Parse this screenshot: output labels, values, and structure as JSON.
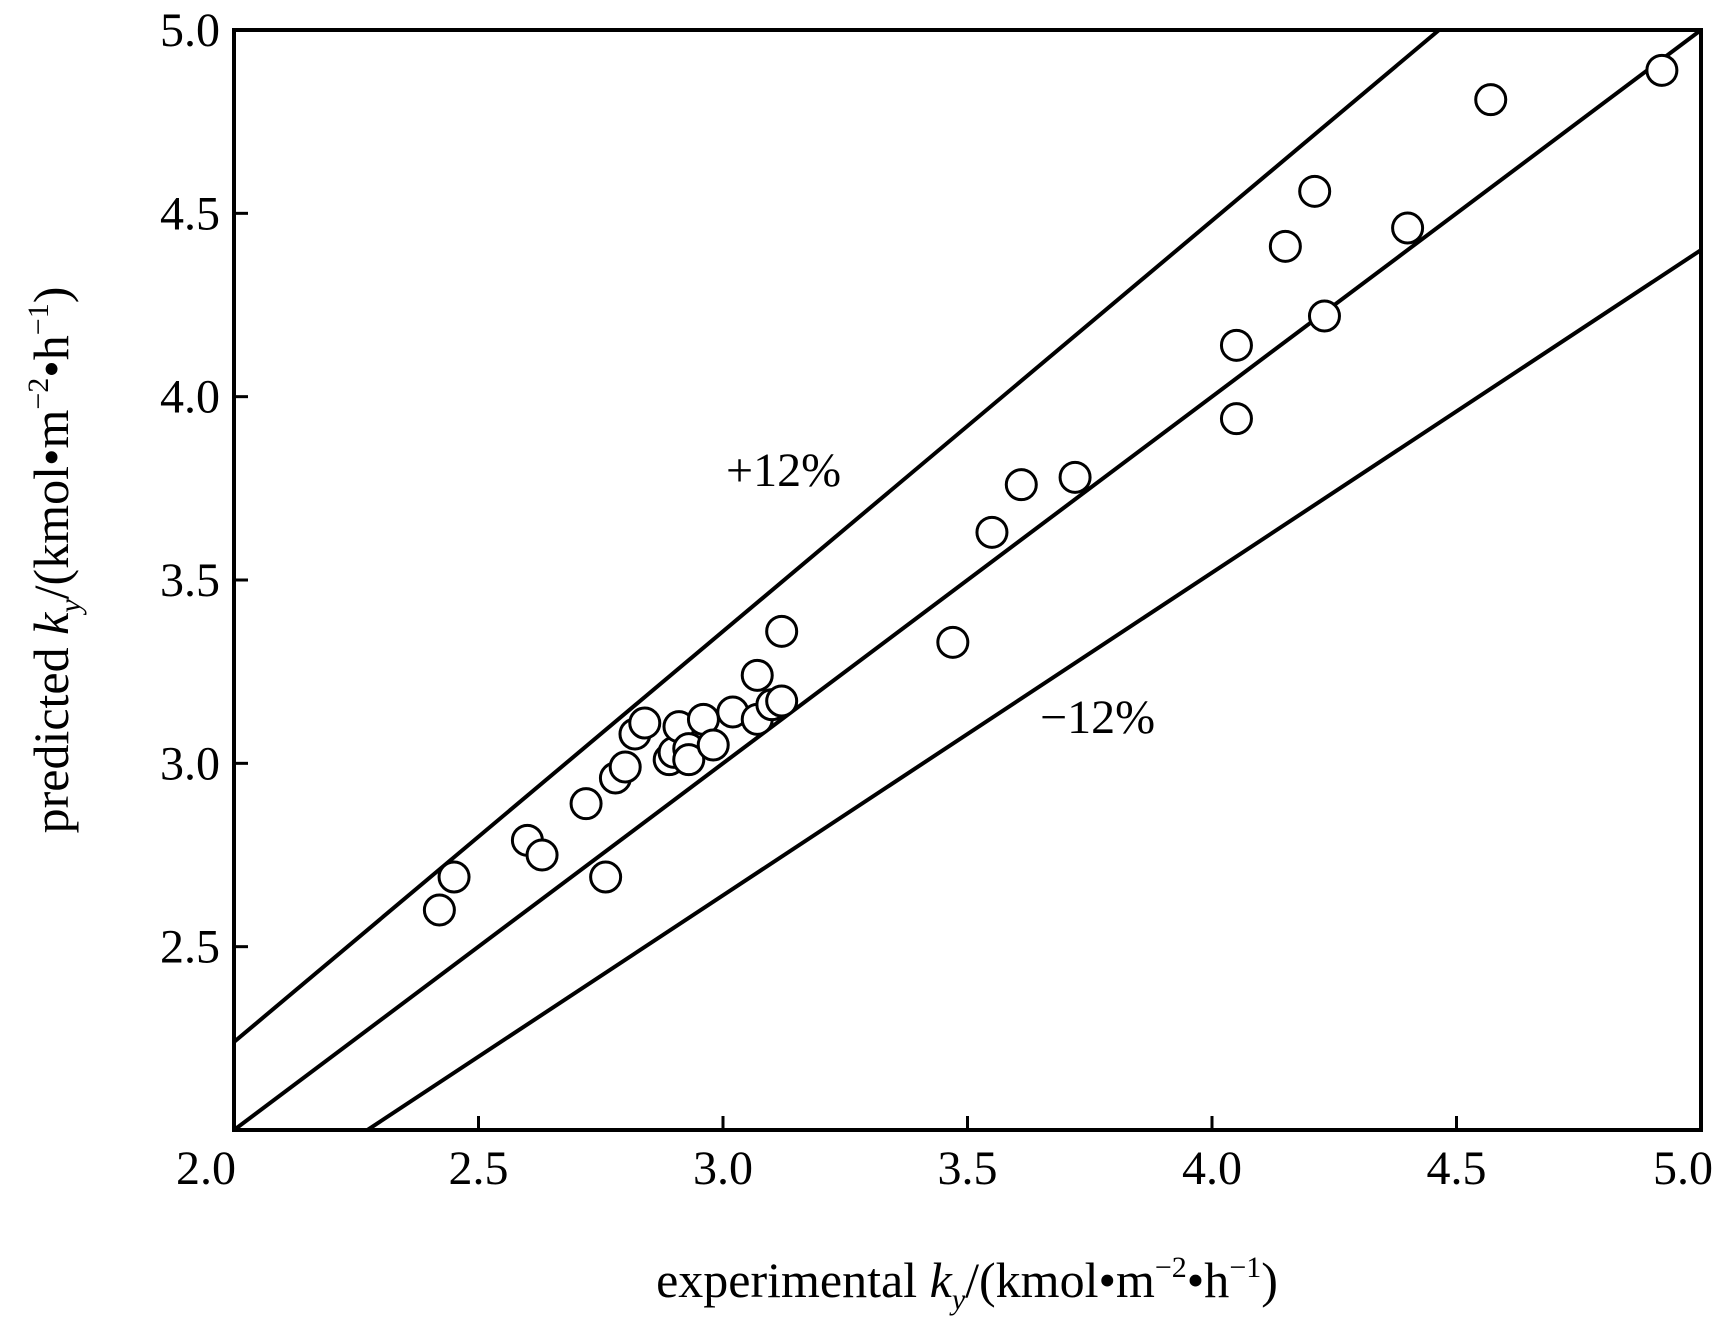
{
  "chart_data": {
    "type": "scatter",
    "xlabel": {
      "prefix": "experimental ",
      "var": "k",
      "sub": "y",
      "unit_open": "/(kmol•m",
      "exp1": "−2",
      "mid": "•h",
      "exp2": "−1",
      "unit_close": ")"
    },
    "ylabel": {
      "prefix": "predicted ",
      "var": "k",
      "sub": "y",
      "unit_open": "/(kmol•m",
      "exp1": "−2",
      "mid": "•h",
      "exp2": "−1",
      "unit_close": ")"
    },
    "xlim": [
      2.0,
      5.0
    ],
    "ylim": [
      2.0,
      5.0
    ],
    "x_ticks": [
      2.0,
      2.5,
      3.0,
      3.5,
      4.0,
      4.5,
      5.0
    ],
    "x_tick_labels": [
      "2.0",
      "2.5",
      "3.0",
      "3.5",
      "4.0",
      "4.5",
      "5.0"
    ],
    "y_ticks": [
      2.5,
      3.0,
      3.5,
      4.0,
      4.5,
      5.0
    ],
    "y_tick_labels": [
      "2.5",
      "3.0",
      "3.5",
      "4.0",
      "4.5",
      "5.0"
    ],
    "grid": false,
    "reference_lines": [
      {
        "name": "+12%",
        "slope": 1.12,
        "label": "+12%"
      },
      {
        "name": "parity",
        "slope": 1.0,
        "label": ""
      },
      {
        "name": "-12%",
        "slope": 0.88,
        "label": "−12%"
      }
    ],
    "points": [
      {
        "x": 2.42,
        "y": 2.6
      },
      {
        "x": 2.45,
        "y": 2.69
      },
      {
        "x": 2.6,
        "y": 2.79
      },
      {
        "x": 2.63,
        "y": 2.75
      },
      {
        "x": 2.72,
        "y": 2.89
      },
      {
        "x": 2.76,
        "y": 2.69
      },
      {
        "x": 2.78,
        "y": 2.96
      },
      {
        "x": 2.8,
        "y": 2.99
      },
      {
        "x": 2.82,
        "y": 3.08
      },
      {
        "x": 2.84,
        "y": 3.11
      },
      {
        "x": 2.89,
        "y": 3.01
      },
      {
        "x": 2.9,
        "y": 3.03
      },
      {
        "x": 2.91,
        "y": 3.1
      },
      {
        "x": 2.93,
        "y": 3.04
      },
      {
        "x": 2.93,
        "y": 3.01
      },
      {
        "x": 2.96,
        "y": 3.12
      },
      {
        "x": 2.98,
        "y": 3.05
      },
      {
        "x": 3.02,
        "y": 3.14
      },
      {
        "x": 3.07,
        "y": 3.12
      },
      {
        "x": 3.07,
        "y": 3.24
      },
      {
        "x": 3.1,
        "y": 3.16
      },
      {
        "x": 3.12,
        "y": 3.17
      },
      {
        "x": 3.12,
        "y": 3.36
      },
      {
        "x": 3.47,
        "y": 3.33
      },
      {
        "x": 3.55,
        "y": 3.63
      },
      {
        "x": 3.61,
        "y": 3.76
      },
      {
        "x": 3.72,
        "y": 3.78
      },
      {
        "x": 4.05,
        "y": 4.14
      },
      {
        "x": 4.05,
        "y": 3.94
      },
      {
        "x": 4.15,
        "y": 4.41
      },
      {
        "x": 4.21,
        "y": 4.56
      },
      {
        "x": 4.23,
        "y": 4.22
      },
      {
        "x": 4.4,
        "y": 4.46
      },
      {
        "x": 4.57,
        "y": 4.81
      },
      {
        "x": 4.92,
        "y": 4.89
      }
    ]
  }
}
